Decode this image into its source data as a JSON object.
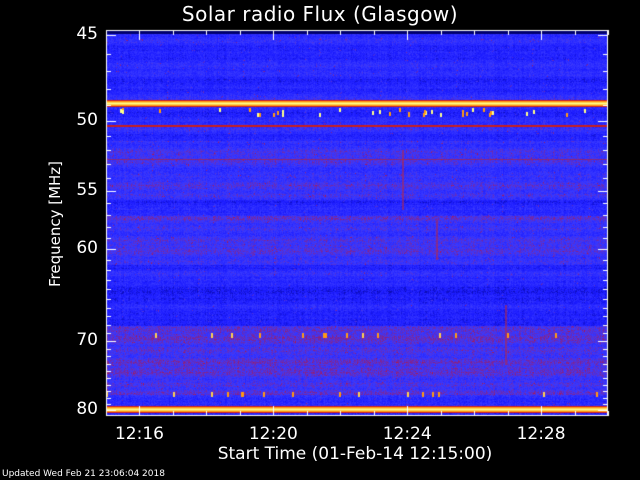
{
  "chart_data": {
    "type": "heatmap",
    "title": "Solar radio Flux (Glasgow)",
    "xlabel": "Start Time (01-Feb-14 12:15:00)",
    "ylabel": "Frequency [MHz]",
    "x_ticks": [
      "12:16",
      "12:20",
      "12:24",
      "12:28"
    ],
    "x_tick_minutes": [
      1,
      5,
      9,
      13
    ],
    "xlim_minutes": [
      0,
      15
    ],
    "y_ticks": [
      45,
      50,
      55,
      60,
      70,
      80
    ],
    "ylim": [
      45,
      80
    ],
    "y_scale": "reciprocal",
    "bright_bands_mhz": [
      48.9,
      79.8
    ],
    "colormap": [
      "#00006e",
      "#1a1aff",
      "#3a3aff",
      "#a01a60",
      "#d21e1e",
      "#ff9a14",
      "#ffff8c"
    ]
  },
  "footer": {
    "updated": "Updated Wed Feb 21 23:06:04 2018"
  }
}
